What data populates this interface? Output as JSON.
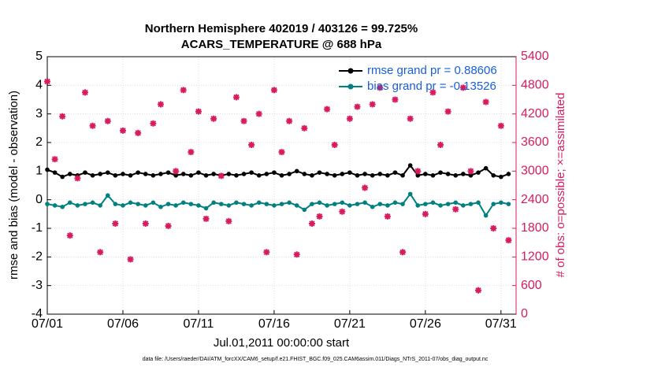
{
  "chart_data": {
    "type": "line",
    "title": "Northern Hemisphere 402019 / 403126 = 99.725%",
    "subtitle": "ACARS_TEMPERATURE @ 688 hPa",
    "x_label": "Jul.01,2011 00:00:00 start",
    "y_label": "rmse and bias (model - observation)",
    "y2_label": "# of obs: o=possible; ×=assimilated",
    "footnote": "data file: /Users/raeder/DAI/ATM_forcXX/CAM6_setup/f.e21.FHIST_BGC.f09_025.CAM6assim.011/Diags_NTrS_2011-07/obs_diag_output.nc",
    "x": [
      0,
      0.5,
      1,
      1.5,
      2,
      2.5,
      3,
      3.5,
      4,
      4.5,
      5,
      5.5,
      6,
      6.5,
      7,
      7.5,
      8,
      8.5,
      9,
      9.5,
      10,
      10.5,
      11,
      11.5,
      12,
      12.5,
      13,
      13.5,
      14,
      14.5,
      15,
      15.5,
      16,
      16.5,
      17,
      17.5,
      18,
      18.5,
      19,
      19.5,
      20,
      20.5,
      21,
      21.5,
      22,
      22.5,
      23,
      23.5,
      24,
      24.5,
      25,
      25.5,
      26,
      26.5,
      27,
      27.5,
      28,
      28.5,
      29,
      29.5,
      30,
      30.5
    ],
    "series": [
      {
        "name": "rmse grand pr = 0.88606",
        "color": "#000000",
        "marker": "dot",
        "values": [
          1.05,
          0.95,
          0.8,
          0.9,
          0.85,
          0.95,
          0.85,
          0.9,
          0.95,
          0.85,
          0.9,
          0.85,
          0.95,
          0.9,
          0.85,
          0.9,
          0.95,
          0.85,
          0.9,
          0.85,
          0.95,
          0.85,
          0.9,
          0.85,
          0.9,
          0.85,
          0.9,
          0.95,
          0.85,
          0.9,
          0.95,
          0.85,
          0.9,
          1.0,
          0.9,
          0.85,
          0.95,
          0.9,
          0.85,
          0.9,
          0.95,
          0.85,
          0.9,
          0.85,
          0.9,
          0.85,
          0.95,
          0.85,
          1.2,
          0.85,
          0.9,
          0.85,
          0.95,
          0.9,
          0.85,
          0.9,
          0.85,
          0.95,
          1.1,
          0.85,
          0.8,
          0.9
        ]
      },
      {
        "name": "bias grand pr = -0.13526",
        "color": "#008080",
        "marker": "dot",
        "values": [
          -0.15,
          -0.2,
          -0.25,
          -0.1,
          -0.2,
          -0.15,
          -0.1,
          -0.2,
          0.15,
          -0.15,
          -0.2,
          -0.1,
          -0.15,
          -0.2,
          -0.1,
          -0.25,
          -0.15,
          -0.2,
          -0.1,
          -0.15,
          -0.2,
          -0.3,
          -0.1,
          -0.15,
          -0.2,
          -0.1,
          -0.15,
          -0.2,
          -0.1,
          -0.15,
          -0.2,
          -0.15,
          -0.1,
          -0.2,
          -0.35,
          -0.15,
          -0.1,
          -0.2,
          -0.15,
          -0.1,
          -0.2,
          -0.15,
          -0.1,
          -0.25,
          -0.15,
          -0.2,
          -0.1,
          -0.15,
          0.2,
          -0.2,
          -0.15,
          -0.1,
          -0.2,
          -0.15,
          -0.1,
          -0.2,
          -0.15,
          -0.1,
          -0.55,
          -0.15,
          -0.1,
          -0.15
        ]
      },
      {
        "color": "#d81b60",
        "marker": "star",
        "axis": "y2",
        "values": [
          4880,
          3250,
          4150,
          1650,
          2850,
          4650,
          3950,
          1300,
          4050,
          1900,
          3850,
          1150,
          3800,
          1900,
          4000,
          4400,
          1850,
          3000,
          4700,
          3400,
          4250,
          2000,
          4100,
          2900,
          1950,
          4550,
          4050,
          3550,
          4200,
          1300,
          4700,
          3400,
          4050,
          1250,
          3900,
          1900,
          2050,
          4300,
          3550,
          2150,
          4100,
          4350,
          2650,
          4400,
          4750,
          2050,
          4500,
          1300,
          4100,
          3000,
          2100,
          4650,
          3550,
          4250,
          2200,
          4750,
          3000,
          500,
          4450,
          1800,
          3950,
          1550
        ]
      }
    ],
    "xlim": [
      0,
      31
    ],
    "xticks": [
      {
        "value": 0,
        "label": "07/01"
      },
      {
        "value": 5,
        "label": "07/06"
      },
      {
        "value": 10,
        "label": "07/11"
      },
      {
        "value": 15,
        "label": "07/16"
      },
      {
        "value": 20,
        "label": "07/21"
      },
      {
        "value": 25,
        "label": "07/26"
      },
      {
        "value": 30,
        "label": "07/31"
      }
    ],
    "ylim": [
      -4,
      5
    ],
    "yticks": [
      -4,
      -3,
      -2,
      -1,
      0,
      1,
      2,
      3,
      4,
      5
    ],
    "y2lim": [
      0,
      5400
    ],
    "y2ticks": [
      0,
      600,
      1200,
      1800,
      2400,
      3000,
      3600,
      4200,
      4800,
      5400
    ],
    "y2_color": "#d81b60",
    "grid": true,
    "legend": "upper right"
  }
}
